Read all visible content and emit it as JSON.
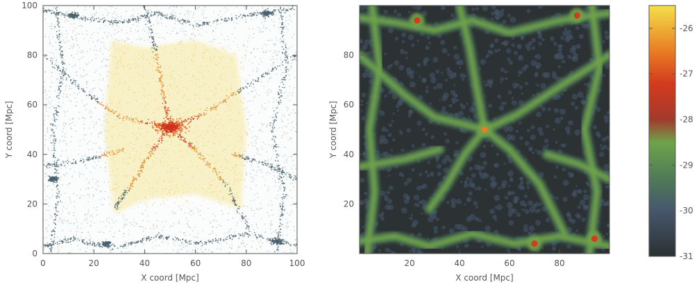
{
  "chart_data": [
    {
      "type": "scatter",
      "xlabel": "X coord [Mpc]",
      "ylabel": "Y coord [Mpc]",
      "xlim": [
        0,
        100
      ],
      "ylim": [
        0,
        100
      ],
      "xticks": [
        0,
        20,
        40,
        60,
        80,
        100
      ],
      "yticks": [
        0,
        20,
        40,
        60,
        80,
        100
      ],
      "colors": {
        "field": "#7d9aa6",
        "halo": "#e8c43a",
        "core": "#d0341c",
        "web": "#49626d"
      },
      "filaments": [
        {
          "x": [
            50,
            30,
            18,
            0
          ],
          "y": [
            51,
            55,
            64,
            80
          ]
        },
        {
          "x": [
            50,
            63,
            78,
            100
          ],
          "y": [
            51,
            56,
            66,
            80
          ]
        },
        {
          "x": [
            50,
            42,
            35,
            28
          ],
          "y": [
            51,
            40,
            28,
            18
          ]
        },
        {
          "x": [
            50,
            60,
            72,
            82
          ],
          "y": [
            51,
            42,
            28,
            8
          ]
        },
        {
          "x": [
            50,
            47,
            44,
            40
          ],
          "y": [
            51,
            66,
            83,
            100
          ]
        },
        {
          "x": [
            0,
            15,
            30,
            45,
            60,
            80,
            100
          ],
          "y": [
            98,
            95,
            93,
            97,
            92,
            96,
            99
          ]
        },
        {
          "x": [
            0,
            12,
            28,
            45,
            62,
            80,
            100
          ],
          "y": [
            3,
            6,
            2,
            7,
            4,
            8,
            3
          ]
        },
        {
          "x": [
            3,
            6,
            4,
            8,
            5
          ],
          "y": [
            0,
            25,
            50,
            75,
            100
          ]
        },
        {
          "x": [
            92,
            95,
            90,
            96,
            93
          ],
          "y": [
            0,
            25,
            50,
            75,
            100
          ]
        },
        {
          "x": [
            0,
            18,
            32
          ],
          "y": [
            35,
            38,
            42
          ]
        },
        {
          "x": [
            75,
            88,
            100
          ],
          "y": [
            40,
            36,
            30
          ]
        }
      ],
      "halos": [
        {
          "x": 50,
          "y": 51,
          "r": 18
        },
        {
          "x": 88,
          "y": 97,
          "r": 4
        },
        {
          "x": 12,
          "y": 96,
          "r": 3
        },
        {
          "x": 92,
          "y": 5,
          "r": 4
        },
        {
          "x": 25,
          "y": 4,
          "r": 3
        },
        {
          "x": 4,
          "y": 30,
          "r": 3
        }
      ]
    },
    {
      "type": "heatmap",
      "xlabel": "X coord [Mpc]",
      "ylabel": "Y coord [Mpc]",
      "xlim": [
        0,
        100
      ],
      "ylim": [
        0,
        100
      ],
      "xticks": [
        20,
        40,
        60,
        80
      ],
      "yticks": [
        20,
        40,
        60,
        80
      ],
      "colorscale": {
        "min": -31,
        "max": -25.5,
        "ticks": [
          -26,
          -27,
          -28,
          -29,
          -30,
          -31
        ],
        "stops": [
          {
            "v": -31,
            "c": "#2c3233"
          },
          {
            "v": -30,
            "c": "#46566c"
          },
          {
            "v": -29.3,
            "c": "#4f7a58"
          },
          {
            "v": -28.5,
            "c": "#6fa349"
          },
          {
            "v": -28,
            "c": "#a23a2c"
          },
          {
            "v": -27.2,
            "c": "#d43b1e"
          },
          {
            "v": -26.5,
            "c": "#e97d24"
          },
          {
            "v": -25.5,
            "c": "#f3e04a"
          }
        ]
      },
      "filaments": [
        {
          "x": [
            50,
            30,
            18,
            0
          ],
          "y": [
            50,
            55,
            64,
            80
          ]
        },
        {
          "x": [
            50,
            63,
            78,
            100
          ],
          "y": [
            50,
            56,
            66,
            80
          ]
        },
        {
          "x": [
            50,
            42,
            35,
            28
          ],
          "y": [
            50,
            40,
            28,
            18
          ]
        },
        {
          "x": [
            50,
            60,
            72,
            82
          ],
          "y": [
            50,
            42,
            28,
            8
          ]
        },
        {
          "x": [
            50,
            47,
            44,
            40
          ],
          "y": [
            50,
            66,
            83,
            100
          ]
        },
        {
          "x": [
            0,
            15,
            30,
            45,
            60,
            80,
            100
          ],
          "y": [
            95,
            93,
            90,
            94,
            89,
            94,
            97
          ]
        },
        {
          "x": [
            0,
            14,
            28,
            45,
            62,
            80,
            100
          ],
          "y": [
            5,
            7,
            3,
            8,
            4,
            7,
            3
          ]
        },
        {
          "x": [
            3,
            6,
            4,
            8,
            5
          ],
          "y": [
            0,
            25,
            50,
            75,
            100
          ]
        },
        {
          "x": [
            92,
            95,
            90,
            96,
            93
          ],
          "y": [
            0,
            25,
            50,
            75,
            100
          ]
        },
        {
          "x": [
            0,
            18,
            32
          ],
          "y": [
            35,
            38,
            42
          ]
        },
        {
          "x": [
            75,
            88,
            100
          ],
          "y": [
            40,
            36,
            30
          ]
        }
      ],
      "peaks": [
        {
          "x": 50,
          "y": 50,
          "v": -27
        },
        {
          "x": 87,
          "y": 96,
          "v": -27.2
        },
        {
          "x": 23,
          "y": 94,
          "v": -27.4
        },
        {
          "x": 70,
          "y": 4,
          "v": -27.5
        },
        {
          "x": 94,
          "y": 6,
          "v": -27.4
        }
      ]
    }
  ]
}
